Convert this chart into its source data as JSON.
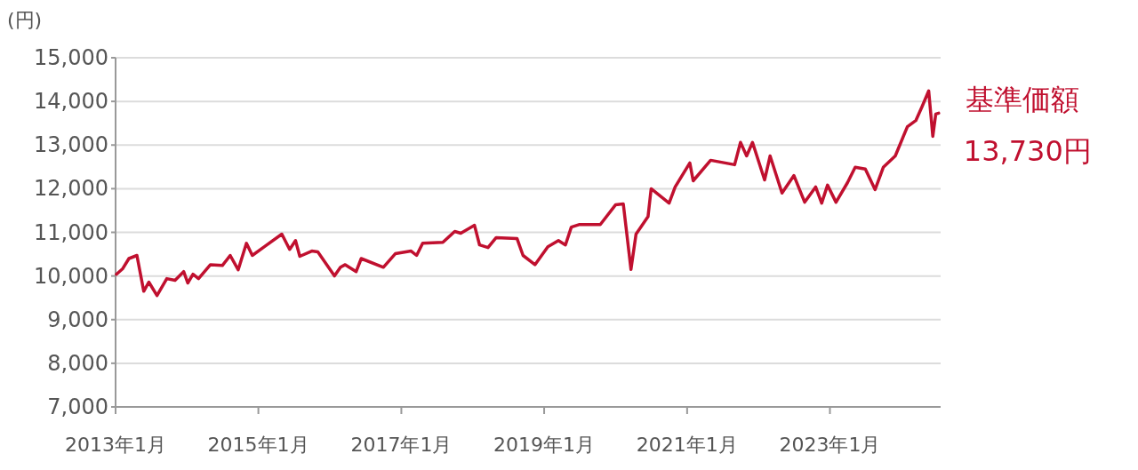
{
  "chart_data": {
    "type": "line",
    "ylabel": "(円)",
    "xlim": [
      "2013-01-01",
      "2024-07-20"
    ],
    "xticks": [
      {
        "value": "2013-01-01",
        "label": "2013年1月"
      },
      {
        "value": "2015-01-01",
        "label": "2015年1月"
      },
      {
        "value": "2017-01-01",
        "label": "2017年1月"
      },
      {
        "value": "2019-01-01",
        "label": "2019年1月"
      },
      {
        "value": "2021-01-01",
        "label": "2021年1月"
      },
      {
        "value": "2023-01-01",
        "label": "2023年1月"
      }
    ],
    "ylim": [
      7000,
      15000
    ],
    "yticks": [
      {
        "value": 7000,
        "label": "7,000"
      },
      {
        "value": 8000,
        "label": "8,000"
      },
      {
        "value": 9000,
        "label": "9,000"
      },
      {
        "value": 10000,
        "label": "10,000"
      },
      {
        "value": 11000,
        "label": "11,000"
      },
      {
        "value": 12000,
        "label": "12,000"
      },
      {
        "value": 13000,
        "label": "13,000"
      },
      {
        "value": 14000,
        "label": "14,000"
      },
      {
        "value": 15000,
        "label": "15,000"
      }
    ],
    "grid": "y",
    "marker": "none",
    "line_style": "solid",
    "annotations": [
      {
        "text": "13,730円",
        "x": "2024-07-10",
        "y": 13730
      }
    ],
    "series": [
      {
        "name": "基準価額",
        "color": "#c0102f",
        "x": [
          "2013-01-05",
          "2013-02-05",
          "2013-03-10",
          "2013-04-20",
          "2013-05-25",
          "2013-06-20",
          "2013-08-01",
          "2013-09-20",
          "2013-11-01",
          "2013-12-15",
          "2014-01-05",
          "2014-02-01",
          "2014-03-01",
          "2014-05-01",
          "2014-07-01",
          "2014-08-10",
          "2014-09-20",
          "2014-11-01",
          "2014-12-01",
          "2015-02-01",
          "2015-05-01",
          "2015-06-10",
          "2015-07-10",
          "2015-08-01",
          "2015-10-01",
          "2015-11-01",
          "2016-01-25",
          "2016-02-25",
          "2016-03-20",
          "2016-05-15",
          "2016-06-10",
          "2016-10-01",
          "2016-12-01",
          "2017-02-20",
          "2017-03-20",
          "2017-04-20",
          "2017-08-01",
          "2017-10-01",
          "2017-11-01",
          "2018-01-10",
          "2018-02-05",
          "2018-03-20",
          "2018-05-01",
          "2018-08-15",
          "2018-09-15",
          "2018-11-15",
          "2019-01-20",
          "2019-03-15",
          "2019-04-20",
          "2019-05-20",
          "2019-07-01",
          "2019-10-15",
          "2020-01-01",
          "2020-02-10",
          "2020-03-20",
          "2020-04-15",
          "2020-06-15",
          "2020-07-01",
          "2020-10-01",
          "2020-11-01",
          "2021-01-15",
          "2021-02-01",
          "2021-05-01",
          "2021-09-01",
          "2021-10-01",
          "2021-11-01",
          "2021-12-01",
          "2022-02-01",
          "2022-03-01",
          "2022-05-01",
          "2022-07-01",
          "2022-08-25",
          "2022-10-20",
          "2022-11-20",
          "2022-12-20",
          "2023-02-01",
          "2023-04-01",
          "2023-05-10",
          "2023-07-01",
          "2023-08-20",
          "2023-10-01",
          "2023-12-01",
          "2024-02-01",
          "2024-03-15",
          "2024-04-15",
          "2024-05-20",
          "2024-06-10",
          "2024-06-25",
          "2024-07-10"
        ],
        "values": [
          10040,
          10160,
          10400,
          10470,
          9650,
          9860,
          9550,
          9940,
          9900,
          10100,
          9840,
          10040,
          9940,
          10260,
          10240,
          10470,
          10140,
          10750,
          10470,
          10670,
          10960,
          10610,
          10810,
          10450,
          10570,
          10550,
          10000,
          10200,
          10260,
          10100,
          10400,
          10200,
          10510,
          10570,
          10470,
          10750,
          10770,
          11020,
          10980,
          11160,
          10710,
          10650,
          10880,
          10860,
          10470,
          10260,
          10670,
          10810,
          10710,
          11120,
          11180,
          11180,
          11630,
          11650,
          10150,
          10960,
          11360,
          12000,
          11670,
          12040,
          12590,
          12180,
          12650,
          12550,
          13060,
          12750,
          13060,
          12200,
          12750,
          11900,
          12300,
          11690,
          12040,
          11670,
          12080,
          11690,
          12140,
          12490,
          12450,
          11980,
          12490,
          12750,
          13420,
          13560,
          13870,
          14240,
          13200,
          13710,
          13730
        ]
      }
    ]
  }
}
